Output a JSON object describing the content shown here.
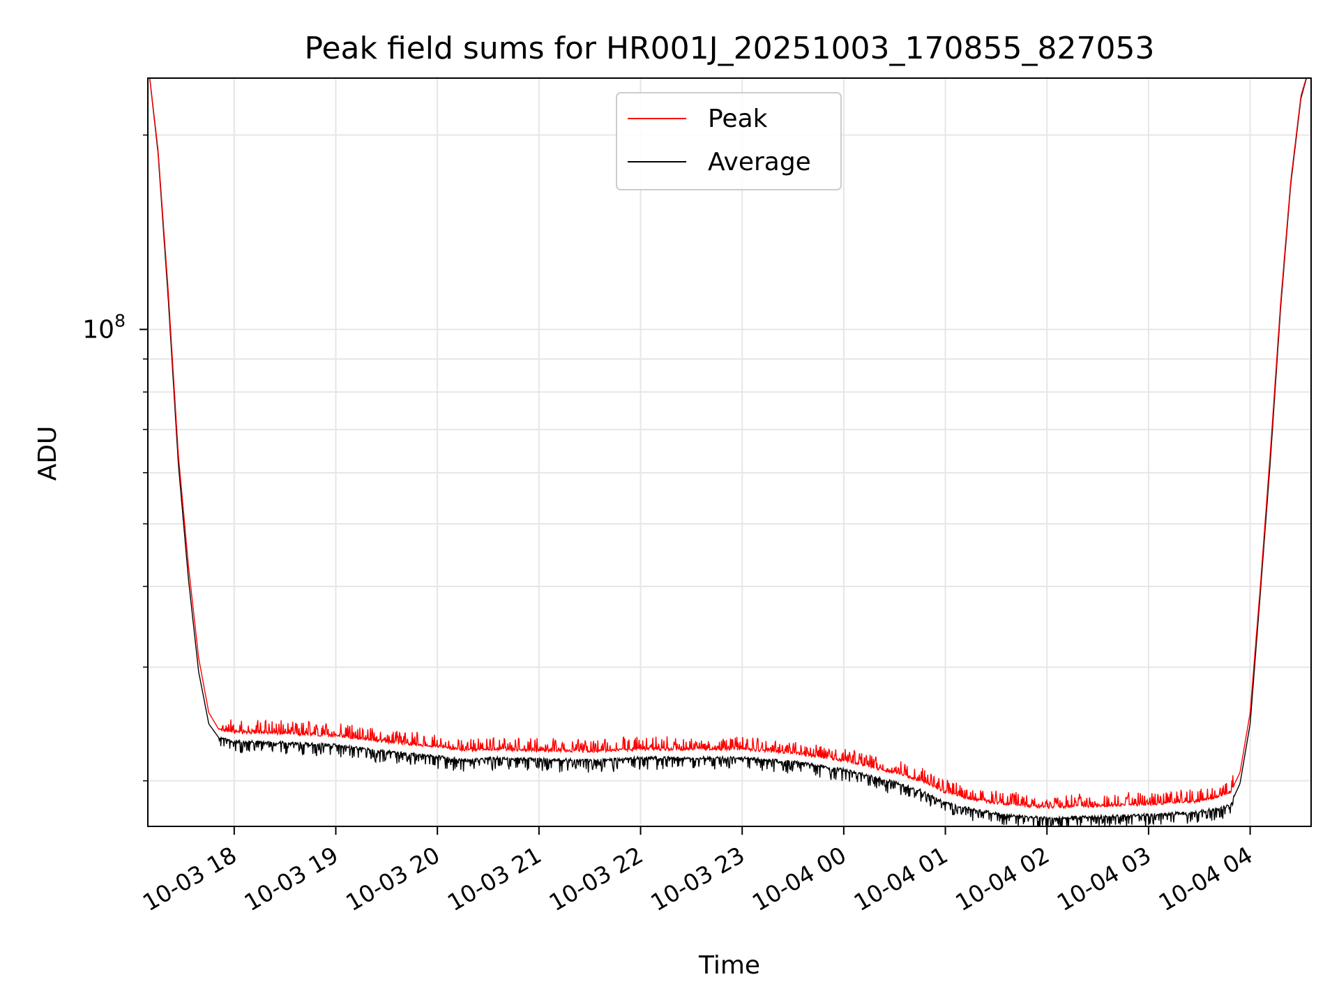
{
  "chart_data": {
    "type": "line",
    "title": "Peak field sums for HR001J_20251003_170855_827053",
    "xlabel": "Time",
    "ylabel": "ADU",
    "yscale": "log",
    "ylim": [
      17000000,
      245000000
    ],
    "xlim_hours": [
      17.15,
      28.6
    ],
    "major_ytick": {
      "value": 100000000,
      "label_base": "10",
      "label_exp": "8"
    },
    "minor_yticks": [
      20000000,
      30000000,
      40000000,
      50000000,
      60000000,
      70000000,
      80000000,
      90000000,
      200000000
    ],
    "xticks": [
      {
        "h": 18,
        "label": "10-03 18"
      },
      {
        "h": 19,
        "label": "10-03 19"
      },
      {
        "h": 20,
        "label": "10-03 20"
      },
      {
        "h": 21,
        "label": "10-03 21"
      },
      {
        "h": 22,
        "label": "10-03 22"
      },
      {
        "h": 23,
        "label": "10-03 23"
      },
      {
        "h": 24,
        "label": "10-04 00"
      },
      {
        "h": 25,
        "label": "10-04 01"
      },
      {
        "h": 26,
        "label": "10-04 02"
      },
      {
        "h": 27,
        "label": "10-04 03"
      },
      {
        "h": 28,
        "label": "10-04 04"
      }
    ],
    "legend": {
      "placement": "upper-center",
      "entries": [
        {
          "label": "Peak",
          "color": "#ff0000"
        },
        {
          "label": "Average",
          "color": "#000000"
        }
      ]
    },
    "series": [
      {
        "name": "Peak",
        "color": "#ff0000",
        "hours": [
          17.15,
          17.25,
          17.35,
          17.45,
          17.55,
          17.65,
          17.75,
          17.85,
          18.0,
          18.5,
          19.0,
          19.5,
          20.0,
          20.3,
          20.5,
          21.0,
          21.5,
          22.0,
          22.5,
          23.0,
          23.5,
          24.0,
          24.5,
          24.8,
          25.0,
          25.3,
          25.6,
          25.8,
          26.0,
          26.5,
          27.0,
          27.5,
          27.8,
          27.9,
          28.0,
          28.1,
          28.2,
          28.3,
          28.4,
          28.5,
          28.6
        ],
        "values": [
          260000000,
          190000000,
          115000000,
          64000000,
          43000000,
          31000000,
          25500000,
          24000000,
          23800000,
          23700000,
          23500000,
          23000000,
          22600000,
          22300000,
          22400000,
          22300000,
          22200000,
          22400000,
          22400000,
          22400000,
          22100000,
          21500000,
          20600000,
          19900000,
          19200000,
          18700000,
          18400000,
          18300000,
          18200000,
          18300000,
          18400000,
          18600000,
          19100000,
          20600000,
          25500000,
          40000000,
          65000000,
          110000000,
          170000000,
          230000000,
          260000000
        ]
      },
      {
        "name": "Average",
        "color": "#000000",
        "hours": [
          17.15,
          17.25,
          17.35,
          17.45,
          17.55,
          17.65,
          17.75,
          17.85,
          18.0,
          18.5,
          19.0,
          19.5,
          20.0,
          20.3,
          20.5,
          21.0,
          21.5,
          22.0,
          22.5,
          23.0,
          23.5,
          24.0,
          24.5,
          24.8,
          25.0,
          25.3,
          25.6,
          25.8,
          26.0,
          26.5,
          27.0,
          27.5,
          27.8,
          27.9,
          28.0,
          28.1,
          28.2,
          28.3,
          28.4,
          28.5,
          28.6
        ],
        "values": [
          260000000,
          188000000,
          112000000,
          62000000,
          41000000,
          29500000,
          24500000,
          23300000,
          23000000,
          22900000,
          22700000,
          22200000,
          21800000,
          21500000,
          21700000,
          21600000,
          21500000,
          21700000,
          21700000,
          21700000,
          21400000,
          20800000,
          19900000,
          19200000,
          18500000,
          18000000,
          17700000,
          17600000,
          17500000,
          17600000,
          17700000,
          17900000,
          18300000,
          19800000,
          24500000,
          39000000,
          63000000,
          108000000,
          168000000,
          228000000,
          260000000
        ]
      }
    ]
  }
}
